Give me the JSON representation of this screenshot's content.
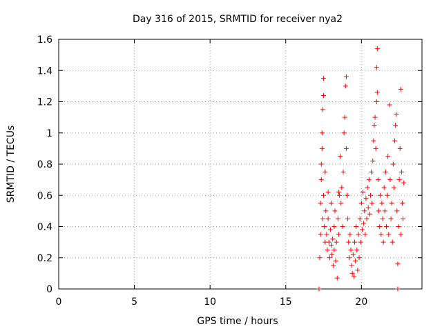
{
  "chart_data": {
    "type": "scatter",
    "title": "Day 316 of 2015, SRMTID for receiver nya2",
    "xlabel": "GPS time / hours",
    "ylabel": "SRMTID / TECUs",
    "xlim": [
      0,
      24
    ],
    "ylim": [
      0,
      1.6
    ],
    "xticks": [
      0,
      5,
      10,
      15,
      20
    ],
    "xtick_labels": [
      "0",
      "5",
      "10",
      "15",
      "20"
    ],
    "yticks": [
      0,
      0.2,
      0.4,
      0.6,
      0.8,
      1.0,
      1.2,
      1.4,
      1.6
    ],
    "ytick_labels": [
      "0",
      "0.2",
      "0.4",
      "0.6",
      "0.8",
      "1",
      "1.2",
      "1.4",
      "1.6"
    ],
    "grid": true,
    "marker": "+",
    "series_color": "#ff0000",
    "series": [
      {
        "name": "SRMTID",
        "points": [
          [
            17.2,
            0.0
          ],
          [
            22.4,
            0.0
          ],
          [
            17.25,
            0.2
          ],
          [
            17.3,
            0.35
          ],
          [
            17.3,
            0.55
          ],
          [
            17.35,
            0.7
          ],
          [
            17.35,
            0.8
          ],
          [
            17.4,
            0.9
          ],
          [
            17.4,
            1.0
          ],
          [
            17.45,
            1.15
          ],
          [
            17.5,
            1.24
          ],
          [
            17.5,
            1.35
          ],
          [
            17.45,
            0.45
          ],
          [
            17.5,
            0.6
          ],
          [
            17.55,
            0.4
          ],
          [
            17.6,
            0.3
          ],
          [
            17.6,
            0.75
          ],
          [
            17.65,
            0.5
          ],
          [
            17.7,
            0.35
          ],
          [
            17.75,
            0.25
          ],
          [
            17.8,
            0.45
          ],
          [
            17.8,
            0.62
          ],
          [
            17.85,
            0.3
          ],
          [
            17.9,
            0.2
          ],
          [
            17.95,
            0.38
          ],
          [
            18.0,
            0.28
          ],
          [
            18.0,
            0.55
          ],
          [
            18.05,
            0.22
          ],
          [
            18.1,
            0.32
          ],
          [
            18.15,
            0.15
          ],
          [
            18.2,
            0.4
          ],
          [
            18.2,
            0.25
          ],
          [
            18.25,
            0.5
          ],
          [
            18.3,
            0.18
          ],
          [
            18.35,
            0.3
          ],
          [
            18.4,
            0.07
          ],
          [
            18.45,
            0.45
          ],
          [
            18.5,
            0.62
          ],
          [
            18.5,
            0.35
          ],
          [
            18.55,
            0.6
          ],
          [
            18.6,
            0.85
          ],
          [
            18.65,
            0.55
          ],
          [
            18.7,
            0.65
          ],
          [
            18.75,
            0.4
          ],
          [
            18.8,
            0.75
          ],
          [
            18.85,
            1.0
          ],
          [
            18.9,
            1.1
          ],
          [
            18.95,
            1.3
          ],
          [
            19.0,
            1.36
          ],
          [
            19.0,
            0.9
          ],
          [
            19.05,
            0.6
          ],
          [
            19.1,
            0.45
          ],
          [
            19.15,
            0.3
          ],
          [
            19.2,
            0.2
          ],
          [
            19.25,
            0.35
          ],
          [
            19.3,
            0.25
          ],
          [
            19.35,
            0.15
          ],
          [
            19.4,
            0.1
          ],
          [
            19.45,
            0.22
          ],
          [
            19.5,
            0.08
          ],
          [
            19.55,
            0.3
          ],
          [
            19.6,
            0.18
          ],
          [
            19.65,
            0.4
          ],
          [
            19.7,
            0.25
          ],
          [
            19.75,
            0.12
          ],
          [
            19.8,
            0.35
          ],
          [
            19.85,
            0.2
          ],
          [
            19.9,
            0.45
          ],
          [
            19.95,
            0.3
          ],
          [
            20.0,
            0.55
          ],
          [
            20.05,
            0.38
          ],
          [
            20.1,
            0.62
          ],
          [
            20.15,
            0.42
          ],
          [
            20.2,
            0.5
          ],
          [
            20.25,
            0.35
          ],
          [
            20.3,
            0.58
          ],
          [
            20.35,
            0.45
          ],
          [
            20.4,
            0.65
          ],
          [
            20.45,
            0.52
          ],
          [
            20.5,
            0.7
          ],
          [
            20.55,
            0.48
          ],
          [
            20.6,
            0.6
          ],
          [
            20.65,
            0.75
          ],
          [
            20.7,
            0.55
          ],
          [
            20.75,
            0.82
          ],
          [
            20.8,
            0.95
          ],
          [
            20.85,
            1.05
          ],
          [
            20.9,
            1.1
          ],
          [
            20.95,
            0.9
          ],
          [
            21.0,
            1.2
          ],
          [
            21.0,
            1.42
          ],
          [
            21.05,
            1.54
          ],
          [
            21.05,
            1.26
          ],
          [
            21.1,
            0.7
          ],
          [
            21.15,
            0.5
          ],
          [
            21.2,
            0.4
          ],
          [
            21.25,
            0.6
          ],
          [
            21.3,
            0.35
          ],
          [
            21.35,
            0.55
          ],
          [
            21.4,
            0.45
          ],
          [
            21.45,
            0.3
          ],
          [
            21.5,
            0.65
          ],
          [
            21.55,
            0.5
          ],
          [
            21.6,
            0.75
          ],
          [
            21.65,
            0.4
          ],
          [
            21.7,
            0.6
          ],
          [
            21.75,
            0.85
          ],
          [
            21.8,
            0.35
          ],
          [
            21.85,
            1.18
          ],
          [
            21.9,
            0.7
          ],
          [
            21.95,
            0.45
          ],
          [
            22.0,
            0.55
          ],
          [
            22.05,
            0.3
          ],
          [
            22.1,
            0.8
          ],
          [
            22.15,
            0.65
          ],
          [
            22.2,
            0.95
          ],
          [
            22.25,
            1.05
          ],
          [
            22.3,
            1.12
          ],
          [
            22.35,
            0.5
          ],
          [
            22.4,
            0.16
          ],
          [
            22.45,
            0.4
          ],
          [
            22.5,
            0.7
          ],
          [
            22.55,
            0.9
          ],
          [
            22.6,
            1.28
          ],
          [
            22.6,
            0.35
          ],
          [
            22.65,
            0.75
          ],
          [
            22.7,
            0.55
          ],
          [
            22.75,
            0.45
          ],
          [
            22.8,
            0.68
          ]
        ]
      }
    ]
  }
}
